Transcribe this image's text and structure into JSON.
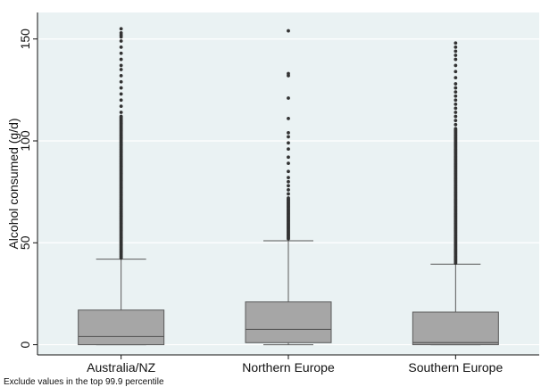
{
  "chart_data": {
    "type": "box",
    "title": "",
    "ylabel": "Alcohol consumed (g/d)",
    "xlabel": "",
    "ylim": [
      -5,
      163
    ],
    "yticks": [
      0,
      50,
      100,
      150
    ],
    "grid": true,
    "legend": "none",
    "note": "Exclude values in the top 99.9 percentile",
    "colors": {
      "background": "#ffffff",
      "plot_background": "#eaf2f3",
      "grid": "#ffffff",
      "box_fill": "#a6a6a6",
      "box_stroke": "#595959",
      "outlier": "#333333"
    },
    "categories": [
      "Australia/NZ",
      "Northern Europe",
      "Southern Europe"
    ],
    "boxes": [
      {
        "category": "Australia/NZ",
        "whisker_low": 0,
        "q1": 0,
        "median": 4,
        "q3": 17,
        "whisker_high": 42,
        "outliers_dense_range": [
          42.5,
          112
        ],
        "outliers": [
          114,
          117,
          120,
          123,
          126,
          129,
          132,
          135,
          137,
          140,
          143,
          146,
          149,
          151,
          152,
          153,
          155
        ]
      },
      {
        "category": "Northern Europe",
        "whisker_low": 0,
        "q1": 1,
        "median": 7.5,
        "q3": 21,
        "whisker_high": 51,
        "outliers_dense_range": [
          52,
          72
        ],
        "outliers": [
          74,
          76,
          78,
          80,
          82,
          85,
          89,
          92,
          96,
          99,
          102,
          104,
          111,
          121,
          132,
          133,
          154
        ]
      },
      {
        "category": "Southern Europe",
        "whisker_low": 0,
        "q1": 0,
        "median": 1,
        "q3": 16,
        "whisker_high": 39.5,
        "outliers_dense_range": [
          40,
          106
        ],
        "outliers": [
          108,
          110,
          112,
          114,
          116,
          118,
          120,
          122,
          124,
          126,
          128,
          131,
          134,
          137,
          140,
          142,
          144,
          146,
          148
        ]
      }
    ]
  }
}
